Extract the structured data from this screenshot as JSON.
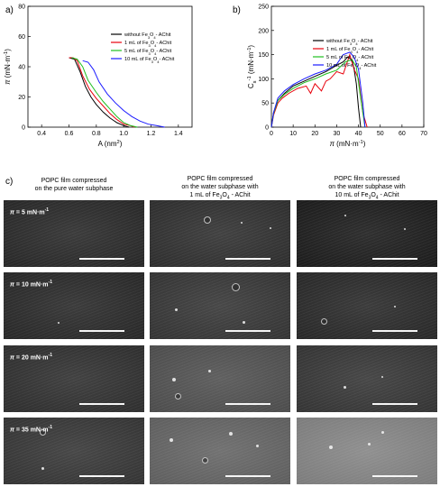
{
  "panels": {
    "a": "a)",
    "b": "b)",
    "c": "c)"
  },
  "chart_data": [
    {
      "type": "line",
      "panel": "a",
      "xlabel": "A (nm²)",
      "xlabel_parts": [
        "A (nm",
        "2",
        ")"
      ],
      "ylabel_parts": [
        "π",
        " (mN·m",
        "-1",
        ")"
      ],
      "xlim": [
        0.3,
        1.5
      ],
      "ylim": [
        0,
        80
      ],
      "xticks": [
        "0.4",
        "0.6",
        "0.8",
        "1.0",
        "1.2",
        "1.4"
      ],
      "yticks": [
        "0",
        "20",
        "40",
        "60",
        "80"
      ],
      "legend_position": "top-right",
      "series": [
        {
          "name": "without Fe3O4 - AChit",
          "legend_parts": [
            "without Fe",
            "3",
            "O",
            "4",
            "- AChit"
          ],
          "color": "#000000",
          "x": [
            0.6,
            0.64,
            0.68,
            0.72,
            0.76,
            0.8,
            0.85,
            0.9,
            0.95,
            1.0,
            1.04
          ],
          "y": [
            46,
            45,
            37,
            27,
            20,
            15,
            10,
            6,
            3,
            1,
            0
          ]
        },
        {
          "name": "1 mL of Fe3O4 - AChit",
          "legend_parts": [
            "1 mL of Fe",
            "3",
            "O",
            "4",
            "- AChit"
          ],
          "color": "#e8000b",
          "x": [
            0.6,
            0.63,
            0.66,
            0.7,
            0.75,
            0.8,
            0.85,
            0.9,
            0.95,
            1.0,
            1.05,
            1.08
          ],
          "y": [
            46,
            46,
            44,
            34,
            25,
            19,
            14,
            9,
            5,
            2,
            1,
            0
          ]
        },
        {
          "name": "5 mL of Fe3O4 - AChit",
          "legend_parts": [
            "5 mL of Fe",
            "3",
            "O",
            "4",
            "- AChit"
          ],
          "color": "#1fbf1f",
          "x": [
            0.62,
            0.66,
            0.7,
            0.74,
            0.8,
            0.85,
            0.9,
            0.95,
            1.0,
            1.05,
            1.1
          ],
          "y": [
            46,
            45,
            40,
            31,
            23,
            17,
            12,
            7,
            3,
            1,
            0
          ]
        },
        {
          "name": "10 mL of Fe3O4 - AChit",
          "legend_parts": [
            "10 mL of Fe",
            "3",
            "O",
            "4",
            "- AChit"
          ],
          "color": "#1a1aff",
          "x": [
            0.7,
            0.74,
            0.78,
            0.82,
            0.88,
            0.94,
            1.0,
            1.06,
            1.12,
            1.18,
            1.24,
            1.3
          ],
          "y": [
            44,
            43,
            38,
            30,
            22,
            16,
            11,
            7,
            4,
            2,
            1,
            0
          ]
        }
      ]
    },
    {
      "type": "line",
      "panel": "b",
      "xlabel_parts": [
        "π",
        " (mN·m",
        "-1",
        ")"
      ],
      "ylabel_parts": [
        "C",
        "s",
        "-1",
        " (mN·m",
        "-1",
        ")"
      ],
      "xlim": [
        0,
        70
      ],
      "ylim": [
        0,
        250
      ],
      "xticks": [
        "0",
        "10",
        "20",
        "30",
        "40",
        "50",
        "60",
        "70"
      ],
      "yticks": [
        "0",
        "50",
        "100",
        "150",
        "200",
        "250"
      ],
      "legend_position": "top-right",
      "series": [
        {
          "name": "without Fe3O4 - AChit",
          "legend_parts": [
            "without Fe",
            "3",
            "O",
            "4",
            "- AChit"
          ],
          "color": "#000000",
          "x": [
            0,
            1,
            3,
            6,
            10,
            15,
            20,
            25,
            30,
            33,
            35,
            37,
            38,
            39,
            40,
            41
          ],
          "y": [
            0,
            30,
            55,
            70,
            85,
            95,
            105,
            115,
            128,
            135,
            145,
            140,
            120,
            90,
            40,
            0
          ]
        },
        {
          "name": "1 mL of Fe3O4 - AChit",
          "legend_parts": [
            "1 mL of Fe",
            "3",
            "O",
            "4",
            "- AChit"
          ],
          "color": "#e8000b",
          "x": [
            0,
            1,
            3,
            5,
            8,
            12,
            16,
            18,
            20,
            23,
            25,
            27,
            30,
            33,
            36,
            38,
            40,
            42,
            44
          ],
          "y": [
            0,
            25,
            50,
            60,
            70,
            80,
            85,
            70,
            90,
            75,
            95,
            100,
            115,
            110,
            150,
            120,
            100,
            30,
            0
          ]
        },
        {
          "name": "5 mL of Fe3O4 - AChit",
          "legend_parts": [
            "5 mL of Fe",
            "3",
            "O",
            "4",
            "- AChit"
          ],
          "color": "#1fbf1f",
          "x": [
            0,
            1,
            3,
            6,
            10,
            15,
            20,
            25,
            30,
            34,
            37,
            39,
            41,
            43
          ],
          "y": [
            0,
            28,
            55,
            68,
            80,
            92,
            100,
            110,
            118,
            135,
            140,
            125,
            60,
            0
          ]
        },
        {
          "name": "10 mL of Fe3O4 - AChit",
          "legend_parts": [
            "10 mL of Fe",
            "3",
            "O",
            "4",
            "- AChit"
          ],
          "color": "#1a1aff",
          "x": [
            0,
            1,
            3,
            6,
            10,
            15,
            20,
            25,
            30,
            33,
            36,
            38,
            40,
            42,
            43
          ],
          "y": [
            0,
            30,
            60,
            75,
            88,
            100,
            110,
            118,
            130,
            150,
            155,
            145,
            120,
            50,
            0
          ]
        }
      ]
    }
  ],
  "micrographs": {
    "columns": [
      {
        "line1": "POPC film compressed",
        "line2": "on the pure water subphase",
        "line3_parts": [],
        "tint": "#2b2b2b"
      },
      {
        "line1": "POPC film compressed",
        "line2": "on the water subphase with",
        "line3_parts": [
          "1 mL of Fe",
          "3",
          "O",
          "4",
          " - AChit"
        ],
        "tint": "#363636"
      },
      {
        "line1": "POPC film compressed",
        "line2": "on the water subphase with",
        "line3_parts": [
          "10 mL of Fe",
          "3",
          "O",
          "4",
          " - AChit"
        ],
        "tint": "#262626"
      }
    ],
    "rows": [
      {
        "label_parts": [
          "π",
          " = 5 mN·m",
          "-1"
        ],
        "brightness": [
          0.0,
          0.02,
          -0.04
        ]
      },
      {
        "label_parts": [
          "π",
          " = 10 mN·m",
          "-1"
        ],
        "brightness": [
          0.0,
          0.04,
          0.0
        ]
      },
      {
        "label_parts": [
          "π",
          " = 20 mN·m",
          "-1"
        ],
        "brightness": [
          0.02,
          0.12,
          0.04
        ]
      },
      {
        "label_parts": [
          "π",
          " = 35 mN·m",
          "-1"
        ],
        "brightness": [
          0.04,
          0.18,
          0.28
        ]
      }
    ]
  }
}
